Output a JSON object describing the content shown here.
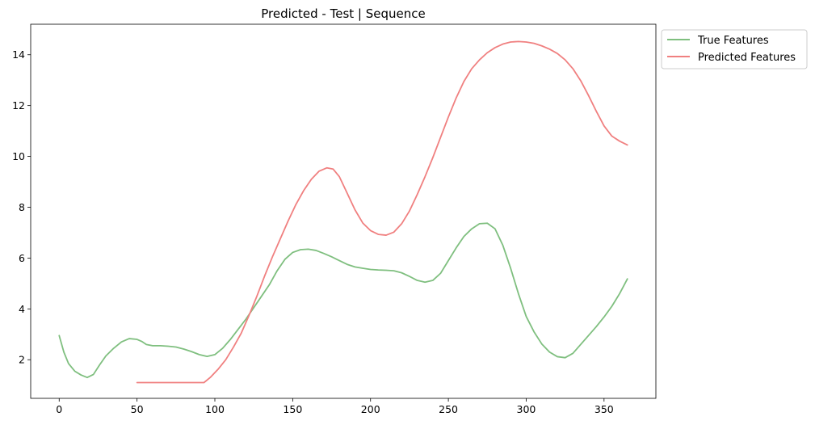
{
  "chart_data": {
    "type": "line",
    "title": "Predicted - Test | Sequence",
    "xlabel": "",
    "ylabel": "",
    "xlim": [
      -18.3,
      383.3
    ],
    "ylim": [
      0.48,
      15.2
    ],
    "xticks": [
      0,
      50,
      100,
      150,
      200,
      250,
      300,
      350
    ],
    "yticks": [
      2,
      4,
      6,
      8,
      10,
      12,
      14
    ],
    "grid": false,
    "legend_position": "outside-top-right",
    "series": [
      {
        "name": "True Features",
        "color": "#7fbf7f",
        "points": [
          [
            0,
            2.95
          ],
          [
            3,
            2.3
          ],
          [
            6,
            1.85
          ],
          [
            10,
            1.55
          ],
          [
            14,
            1.4
          ],
          [
            18,
            1.3
          ],
          [
            22,
            1.42
          ],
          [
            26,
            1.8
          ],
          [
            30,
            2.15
          ],
          [
            35,
            2.45
          ],
          [
            40,
            2.7
          ],
          [
            45,
            2.83
          ],
          [
            50,
            2.8
          ],
          [
            53,
            2.72
          ],
          [
            56,
            2.6
          ],
          [
            60,
            2.55
          ],
          [
            65,
            2.55
          ],
          [
            70,
            2.53
          ],
          [
            75,
            2.5
          ],
          [
            80,
            2.42
          ],
          [
            85,
            2.32
          ],
          [
            90,
            2.2
          ],
          [
            95,
            2.13
          ],
          [
            100,
            2.2
          ],
          [
            105,
            2.45
          ],
          [
            110,
            2.8
          ],
          [
            115,
            3.2
          ],
          [
            120,
            3.6
          ],
          [
            125,
            4.05
          ],
          [
            130,
            4.5
          ],
          [
            135,
            4.95
          ],
          [
            140,
            5.5
          ],
          [
            145,
            5.95
          ],
          [
            150,
            6.22
          ],
          [
            155,
            6.33
          ],
          [
            160,
            6.35
          ],
          [
            165,
            6.3
          ],
          [
            170,
            6.18
          ],
          [
            175,
            6.05
          ],
          [
            180,
            5.9
          ],
          [
            185,
            5.75
          ],
          [
            190,
            5.65
          ],
          [
            195,
            5.6
          ],
          [
            200,
            5.55
          ],
          [
            205,
            5.53
          ],
          [
            210,
            5.52
          ],
          [
            215,
            5.5
          ],
          [
            220,
            5.42
          ],
          [
            225,
            5.28
          ],
          [
            230,
            5.12
          ],
          [
            235,
            5.05
          ],
          [
            240,
            5.12
          ],
          [
            245,
            5.4
          ],
          [
            250,
            5.9
          ],
          [
            255,
            6.4
          ],
          [
            260,
            6.85
          ],
          [
            265,
            7.15
          ],
          [
            270,
            7.35
          ],
          [
            275,
            7.37
          ],
          [
            280,
            7.15
          ],
          [
            285,
            6.5
          ],
          [
            290,
            5.6
          ],
          [
            295,
            4.6
          ],
          [
            300,
            3.7
          ],
          [
            305,
            3.1
          ],
          [
            310,
            2.62
          ],
          [
            315,
            2.3
          ],
          [
            320,
            2.12
          ],
          [
            325,
            2.08
          ],
          [
            330,
            2.25
          ],
          [
            335,
            2.6
          ],
          [
            340,
            2.95
          ],
          [
            345,
            3.3
          ],
          [
            350,
            3.68
          ],
          [
            355,
            4.1
          ],
          [
            360,
            4.6
          ],
          [
            365,
            5.18
          ]
        ]
      },
      {
        "name": "Predicted Features",
        "color": "#f08080",
        "points": [
          [
            50,
            1.1
          ],
          [
            60,
            1.1
          ],
          [
            70,
            1.1
          ],
          [
            80,
            1.1
          ],
          [
            90,
            1.1
          ],
          [
            93,
            1.1
          ],
          [
            97,
            1.3
          ],
          [
            102,
            1.62
          ],
          [
            107,
            2.0
          ],
          [
            112,
            2.5
          ],
          [
            117,
            3.05
          ],
          [
            122,
            3.75
          ],
          [
            127,
            4.5
          ],
          [
            132,
            5.3
          ],
          [
            137,
            6.05
          ],
          [
            142,
            6.75
          ],
          [
            147,
            7.45
          ],
          [
            152,
            8.1
          ],
          [
            157,
            8.65
          ],
          [
            162,
            9.1
          ],
          [
            167,
            9.42
          ],
          [
            172,
            9.55
          ],
          [
            176,
            9.5
          ],
          [
            180,
            9.2
          ],
          [
            185,
            8.55
          ],
          [
            190,
            7.9
          ],
          [
            195,
            7.38
          ],
          [
            200,
            7.08
          ],
          [
            205,
            6.93
          ],
          [
            210,
            6.9
          ],
          [
            215,
            7.02
          ],
          [
            220,
            7.35
          ],
          [
            225,
            7.85
          ],
          [
            230,
            8.5
          ],
          [
            235,
            9.2
          ],
          [
            240,
            9.95
          ],
          [
            245,
            10.75
          ],
          [
            250,
            11.55
          ],
          [
            255,
            12.3
          ],
          [
            260,
            12.95
          ],
          [
            265,
            13.45
          ],
          [
            270,
            13.8
          ],
          [
            275,
            14.08
          ],
          [
            280,
            14.28
          ],
          [
            285,
            14.42
          ],
          [
            290,
            14.5
          ],
          [
            295,
            14.52
          ],
          [
            300,
            14.5
          ],
          [
            305,
            14.45
          ],
          [
            310,
            14.35
          ],
          [
            315,
            14.22
          ],
          [
            320,
            14.05
          ],
          [
            325,
            13.8
          ],
          [
            330,
            13.45
          ],
          [
            335,
            12.98
          ],
          [
            340,
            12.4
          ],
          [
            345,
            11.78
          ],
          [
            350,
            11.2
          ],
          [
            355,
            10.8
          ],
          [
            360,
            10.6
          ],
          [
            365,
            10.45
          ]
        ]
      }
    ]
  }
}
